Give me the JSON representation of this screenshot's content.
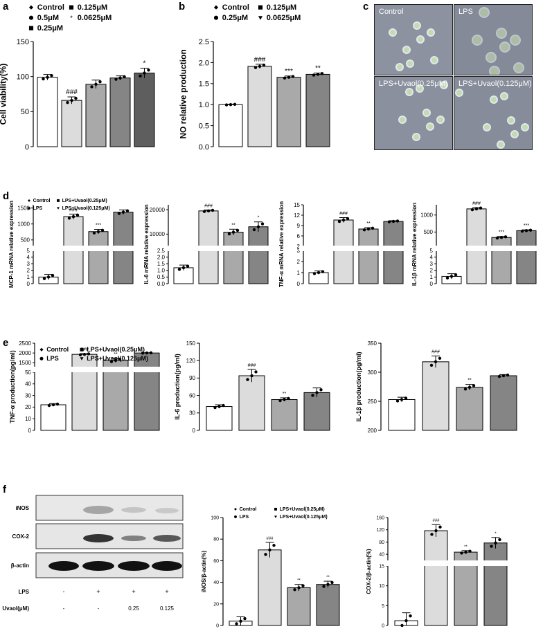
{
  "panel_labels": {
    "a": "a",
    "b": "b",
    "c": "c",
    "d": "d",
    "e": "e",
    "f": "f"
  },
  "colors": {
    "c1": "#ffffff",
    "c2": "#dcdcdc",
    "c3": "#a9a9a9",
    "c4": "#858585",
    "c5": "#5e5e5e"
  },
  "micro": {
    "tl": "Control",
    "tr": "LPS",
    "bl": "LPS+Uvaol(0.25μM)",
    "br": "LPS+Uvaol(0.125μM)"
  },
  "blot": {
    "rows": [
      "iNOS",
      "COX-2",
      "β-actin"
    ],
    "lps_label": "LPS",
    "uvaol_label": "Uvaol(μM)",
    "lps_values": [
      "-",
      "+",
      "+",
      "+"
    ],
    "uvaol_values": [
      "-",
      "-",
      "0.25",
      "0.125"
    ]
  },
  "chart_data": [
    {
      "id": "a",
      "type": "bar",
      "ylabel": "Cell viability(%)",
      "ylim": [
        0,
        150
      ],
      "yticks": [
        "0",
        "50",
        "100",
        "150"
      ],
      "legend": [
        {
          "sym": "diamond",
          "text": "Control"
        },
        {
          "sym": "square",
          "text": "0.125μM"
        },
        {
          "sym": "circle",
          "text": "0.5μM"
        },
        {
          "sym": "star",
          "text": "0.0625μM"
        },
        {
          "sym": "square",
          "text": "0.25μM"
        }
      ],
      "values": [
        99,
        66,
        89,
        98,
        105
      ],
      "errors": [
        4,
        5,
        6,
        3,
        7
      ],
      "stars": [
        "",
        "###",
        "",
        "",
        "*"
      ]
    },
    {
      "id": "b",
      "type": "bar",
      "ylabel": "NO  relative production",
      "ylim": [
        0,
        2.5
      ],
      "yticks": [
        "0.0",
        "0.5",
        "1.0",
        "1.5",
        "2.0",
        "2.5"
      ],
      "legend": [
        {
          "sym": "diamond",
          "text": "Control"
        },
        {
          "sym": "square",
          "text": "0.125μM"
        },
        {
          "sym": "circle",
          "text": "0.25μM"
        },
        {
          "sym": "tri",
          "text": "0.0625μM"
        }
      ],
      "values": [
        1.0,
        1.91,
        1.65,
        1.72
      ],
      "errors": [
        0.01,
        0.05,
        0.03,
        0.03
      ],
      "stars": [
        "",
        "###",
        "***",
        "**"
      ]
    },
    {
      "id": "d1",
      "type": "bar",
      "ylabel": "MCP-1 mRNA relative expression",
      "legend": [
        {
          "sym": "diamond",
          "text": "Control"
        },
        {
          "sym": "square",
          "text": "LPS+Uvaol(0.25μM)"
        },
        {
          "sym": "circle",
          "text": "LPS"
        },
        {
          "sym": "tri",
          "text": "LPS+Uvaol(0.125μM)"
        }
      ],
      "lower": {
        "ticks": [
          "0",
          "1",
          "2",
          "3",
          "4",
          "5"
        ],
        "max": 5
      },
      "upper": {
        "ticks": [
          "500",
          "1000",
          "1500"
        ],
        "min": 300,
        "max": 1600
      },
      "values": [
        1,
        1230,
        760,
        1370
      ],
      "errors": [
        0.4,
        80,
        70,
        70
      ],
      "stars": [
        "",
        "###",
        "***",
        ""
      ]
    },
    {
      "id": "d2",
      "type": "bar",
      "ylabel": "IL-6 mRNA relative expression",
      "lower": {
        "ticks": [
          "0.0",
          "0.5",
          "1.0",
          "1.5",
          "2.0",
          "2.5"
        ],
        "max": 2.5
      },
      "upper": {
        "ticks": [
          "10000",
          "20000"
        ],
        "min": 5000,
        "max": 22000
      },
      "values": [
        1.2,
        19500,
        10800,
        13000
      ],
      "errors": [
        0.2,
        400,
        1200,
        2000
      ],
      "stars": [
        "",
        "###",
        "**",
        "*"
      ]
    },
    {
      "id": "d3",
      "type": "bar",
      "ylabel": "TNF-α mRNA relative expression",
      "lower": {
        "ticks": [
          "0",
          "1",
          "2",
          "3"
        ],
        "max": 3
      },
      "upper": {
        "ticks": [
          "3",
          "6",
          "9",
          "12",
          "15"
        ],
        "min": 3,
        "max": 15
      },
      "values": [
        1,
        10.6,
        8.0,
        10.2
      ],
      "errors": [
        0.15,
        0.7,
        0.4,
        0.2
      ],
      "stars": [
        "",
        "###",
        "**",
        ""
      ]
    },
    {
      "id": "d4",
      "type": "bar",
      "ylabel": "IL-1β mRNA relative expression",
      "lower": {
        "ticks": [
          "0",
          "1",
          "2",
          "3",
          "4",
          "5"
        ],
        "max": 5
      },
      "upper": {
        "ticks": [
          "500",
          "1000"
        ],
        "min": 80,
        "max": 1300
      },
      "values": [
        1.1,
        1180,
        340,
        540
      ],
      "errors": [
        0.4,
        40,
        30,
        25
      ],
      "stars": [
        "",
        "###",
        "***",
        "***"
      ]
    },
    {
      "id": "e1",
      "type": "bar",
      "ylabel": "TNF-α production(pg/ml)",
      "legend": [
        {
          "sym": "diamond",
          "text": "Control"
        },
        {
          "sym": "square",
          "text": "LPS+Uvaol(0.25μM)"
        },
        {
          "sym": "circle",
          "text": "LPS"
        },
        {
          "sym": "tri",
          "text": "LPS+Uvaol(0.125μM)"
        }
      ],
      "lower": {
        "ticks": [
          "0",
          "10",
          "20",
          "30",
          "40",
          "50"
        ],
        "max": 50
      },
      "upper": {
        "ticks": [
          "1500",
          "2000",
          "2500"
        ],
        "min": 1300,
        "max": 2500
      },
      "values": [
        22,
        1930,
        1620,
        2000
      ],
      "errors": [
        1,
        40,
        100,
        15
      ],
      "stars": [
        "",
        "###",
        "**",
        ""
      ]
    },
    {
      "id": "e2",
      "type": "bar",
      "ylabel": "IL-6 production(pg/ml)",
      "ylim": [
        0,
        150
      ],
      "yticks": [
        "0",
        "30",
        "60",
        "90",
        "120",
        "150"
      ],
      "values": [
        41,
        94,
        53,
        65
      ],
      "errors": [
        3,
        11,
        3,
        8
      ],
      "stars": [
        "",
        "###",
        "**",
        ""
      ]
    },
    {
      "id": "e3",
      "type": "bar",
      "ylabel": "IL-1β production(pg/ml)",
      "ylim": [
        200,
        350
      ],
      "yticks": [
        "200",
        "250",
        "300",
        "350"
      ],
      "values": [
        253,
        318,
        274,
        294
      ],
      "errors": [
        4,
        10,
        5,
        2
      ],
      "stars": [
        "",
        "###",
        "**",
        ""
      ]
    },
    {
      "id": "f1",
      "type": "bar",
      "ylabel": "iNOS/β-actin(%)",
      "ylim": [
        0,
        100
      ],
      "yticks": [
        "0",
        "20",
        "40",
        "60",
        "80",
        "100"
      ],
      "legend": [
        {
          "sym": "diamond",
          "text": "Control"
        },
        {
          "sym": "square",
          "text": "LPS+Uvaol(0.25μM)"
        },
        {
          "sym": "circle",
          "text": "LPS"
        },
        {
          "sym": "tri",
          "text": "LPS+Uvaol(0.125μM)"
        }
      ],
      "values": [
        4,
        70,
        35,
        38
      ],
      "errors": [
        4,
        7,
        3,
        3
      ],
      "stars": [
        "",
        "###",
        "**",
        "**"
      ]
    },
    {
      "id": "f2",
      "type": "bar",
      "ylabel": "COX-2/β-actin(%)",
      "lower": {
        "ticks": [
          "0",
          "5",
          "10",
          "15"
        ],
        "max": 15
      },
      "upper": {
        "ticks": [
          "40",
          "80",
          "120",
          "160"
        ],
        "min": 20,
        "max": 160
      },
      "values": [
        1.2,
        117,
        47,
        77
      ],
      "errors": [
        2,
        20,
        5,
        18
      ],
      "stars": [
        "",
        "###",
        "**",
        "*"
      ]
    }
  ]
}
